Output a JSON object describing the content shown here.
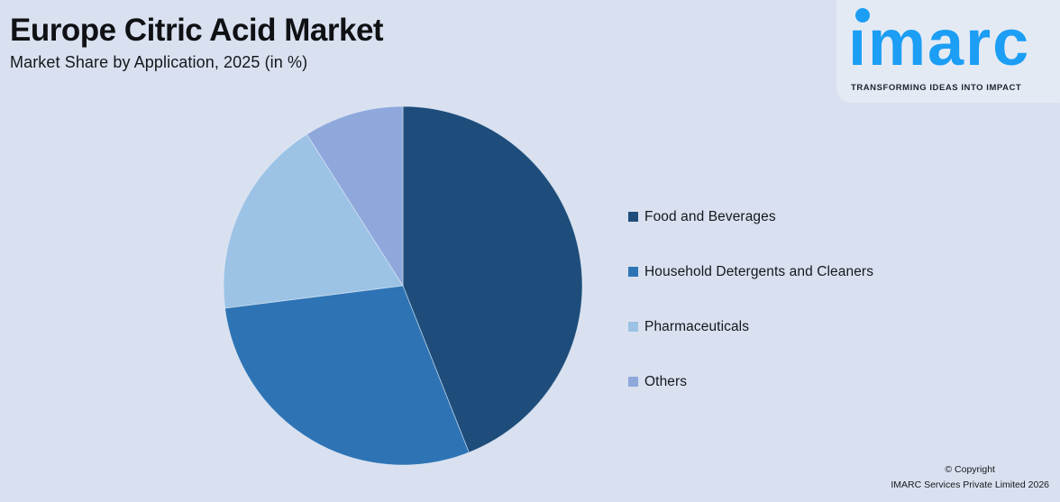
{
  "header": {
    "title": "Europe Citric Acid Market",
    "subtitle": "Market Share by Application, 2025 (in %)"
  },
  "logo": {
    "brand": "imarc",
    "tagline": "TRANSFORMING IDEAS INTO IMPACT",
    "brand_color": "#1b9ef4"
  },
  "chart_data": {
    "type": "pie",
    "title": "Europe Citric Acid Market — Market Share by Application, 2025 (in %)",
    "unit": "%",
    "start_angle_deg": 0,
    "direction": "clockwise",
    "legend_position": "right",
    "data_labels_shown": false,
    "slices": [
      {
        "label": "Food and Beverages",
        "value": 44,
        "color": "#1e4d7b"
      },
      {
        "label": "Household Detergents and Cleaners",
        "value": 29,
        "color": "#2e74b5"
      },
      {
        "label": "Pharmaceuticals",
        "value": 18,
        "color": "#9cc2e5"
      },
      {
        "label": "Others",
        "value": 9,
        "color": "#8fa8dc"
      }
    ]
  },
  "footer": {
    "line1": "© Copyright",
    "line2": "IMARC Services Private Limited 2026"
  },
  "colors": {
    "background": "#d9e1f0",
    "title_text": "#0f1114"
  }
}
